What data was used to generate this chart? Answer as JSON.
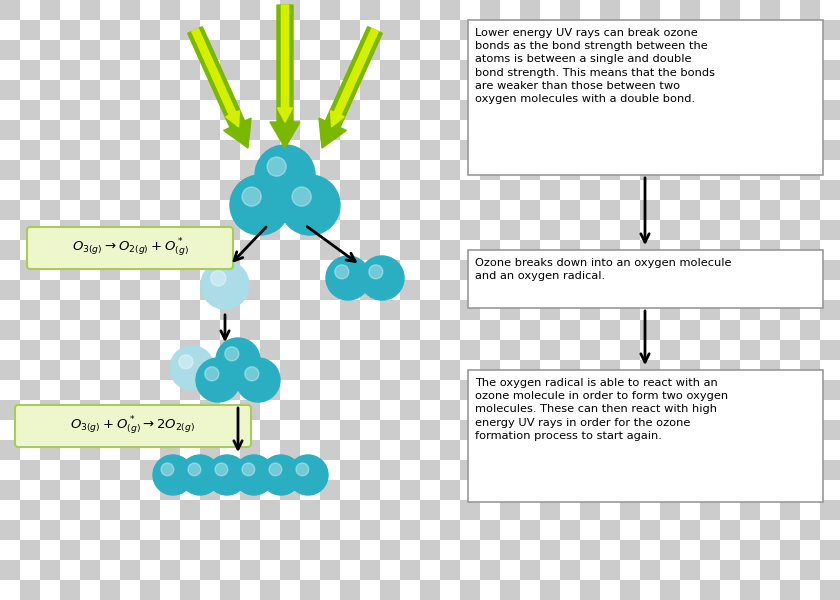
{
  "checker_colors": [
    "#cccccc",
    "#ffffff"
  ],
  "teal_dark": "#29aec2",
  "teal_light": "#aadde8",
  "green_outer": "#7ab800",
  "green_inner": "#d4f000",
  "green_box_bg": "#eef7cc",
  "green_box_border": "#aacc55",
  "text_box_border": "#999999",
  "text_box_bg": "#ffffff",
  "text1": "Lower energy UV rays can break ozone\nbonds as the bond strength between the\natoms is between a single and double\nbond strength. This means that the bonds\nare weaker than those between two\noxygen molecules with a double bond.",
  "text2": "Ozone breaks down into an oxygen molecule\nand an oxygen radical.",
  "text3": "The oxygen radical is able to react with an\nozone molecule in order to form two oxygen\nmolecules. These can then react with high\nenergy UV rays in order for the ozone\nformation process to start again.",
  "checker_size": 20
}
